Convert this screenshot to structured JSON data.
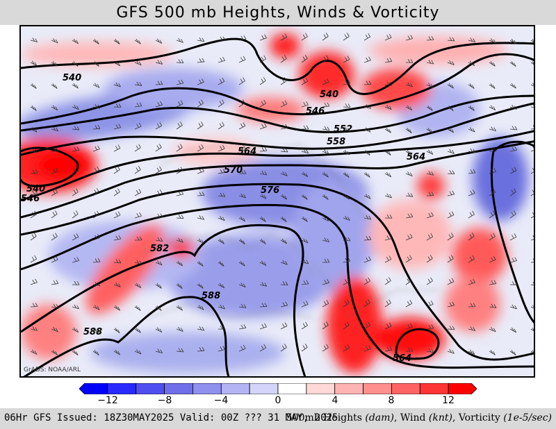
{
  "header": {
    "title": "GFS 500 mb Heights, Winds & Vorticity"
  },
  "map": {
    "credit": "GrADS: NOAA/ARL",
    "contour_labels": [
      "540",
      "540",
      "546",
      "552",
      "558",
      "564",
      "564",
      "570",
      "576",
      "582",
      "588",
      "588",
      "540",
      "546",
      "564"
    ]
  },
  "colorbar": {
    "colors": [
      "#0000ff",
      "#2a2aff",
      "#4f4ff0",
      "#6f6fea",
      "#9090ee",
      "#b4b4f4",
      "#d4d4fa",
      "#ffffff",
      "#ffd8d8",
      "#ffb4b4",
      "#ff9090",
      "#ff6464",
      "#ff3434",
      "#ff0000"
    ],
    "tick_labels": [
      "−12",
      "−8",
      "−4",
      "0",
      "4",
      "8",
      "12"
    ]
  },
  "footer": {
    "issued": "06Hr GFS Issued: 18Z30MAY2025 Valid: 00Z ??? 31 MAY, 2025",
    "legend_prefix": "500mb Heights ",
    "legend_heights_unit": "(dam)",
    "legend_wind": ", Wind ",
    "legend_wind_unit": "(knt)",
    "legend_vort": ", Vorticity ",
    "legend_vort_unit": "(1e-5/sec)"
  }
}
